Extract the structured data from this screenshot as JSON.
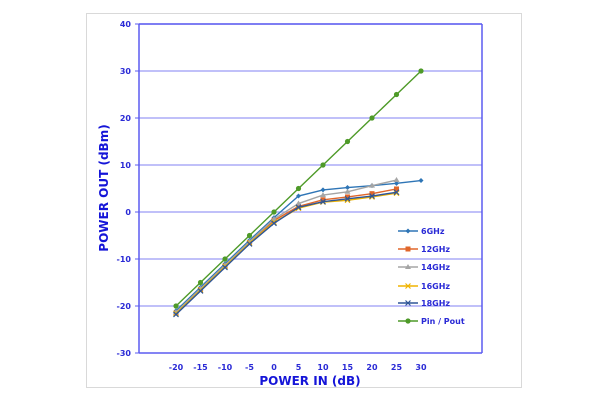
{
  "chart_data": {
    "type": "line",
    "title": "",
    "xlabel": "POWER IN (dB)",
    "ylabel": "POWER OUT (dBm)",
    "xlim": [
      -20,
      30
    ],
    "ylim": [
      -30,
      40
    ],
    "x_ticks": [
      "-20",
      "-15",
      "-10",
      "-5",
      "0",
      "5",
      "10",
      "15",
      "20",
      "25",
      "30"
    ],
    "y_ticks": [
      "40",
      "30",
      "20",
      "10",
      "0",
      "-10",
      "-20",
      "-30"
    ],
    "grid": "horizontal",
    "legend_position": "right-inside-lower",
    "series": [
      {
        "name": "6GHz",
        "color": "#2e75b6",
        "marker": "diamond",
        "x": [
          -20,
          -15,
          -10,
          -5,
          0,
          5,
          10,
          15,
          20,
          25,
          30
        ],
        "values": [
          -21,
          -16,
          -11,
          -6,
          -1.2,
          3.4,
          4.7,
          5.2,
          5.6,
          6.1,
          6.7
        ]
      },
      {
        "name": "12GHz",
        "color": "#e0662a",
        "marker": "square",
        "x": [
          -20,
          -15,
          -10,
          -5,
          0,
          5,
          10,
          15,
          20,
          25
        ],
        "values": [
          -21.5,
          -16.5,
          -11.5,
          -6.5,
          -1.8,
          1.2,
          2.6,
          3.2,
          3.9,
          4.9
        ]
      },
      {
        "name": "14GHz",
        "color": "#a5a5a5",
        "marker": "triangle",
        "x": [
          -20,
          -15,
          -10,
          -5,
          0,
          5,
          10,
          15,
          20,
          25
        ],
        "values": [
          -21.3,
          -16.3,
          -11.3,
          -6.3,
          -1.5,
          1.8,
          3.6,
          4.3,
          5.6,
          6.8
        ]
      },
      {
        "name": "16GHz",
        "color": "#f0b400",
        "marker": "x",
        "x": [
          -20,
          -15,
          -10,
          -5,
          0,
          5,
          10,
          15,
          20,
          25
        ],
        "values": [
          -21.6,
          -16.6,
          -11.6,
          -6.6,
          -2.2,
          0.8,
          2.1,
          2.5,
          3.2,
          4.0
        ]
      },
      {
        "name": "18GHz",
        "color": "#2f5597",
        "marker": "x",
        "x": [
          -20,
          -15,
          -10,
          -5,
          0,
          5,
          10,
          15,
          20,
          25
        ],
        "values": [
          -21.8,
          -16.8,
          -11.8,
          -6.8,
          -2.4,
          1.0,
          2.2,
          2.8,
          3.4,
          4.2
        ]
      },
      {
        "name": "Pin / Pout",
        "color": "#4e9a28",
        "marker": "circle",
        "x": [
          -20,
          -15,
          -10,
          -5,
          0,
          5,
          10,
          15,
          20,
          25,
          30
        ],
        "values": [
          -20,
          -15,
          -10,
          -5,
          0,
          5,
          10,
          15,
          20,
          25,
          30
        ]
      }
    ]
  },
  "colors": {
    "axis": "#5b5bf0",
    "grid": "#9b9bf5",
    "text": "#2a2ad6",
    "frame": "#d9d9d9"
  }
}
